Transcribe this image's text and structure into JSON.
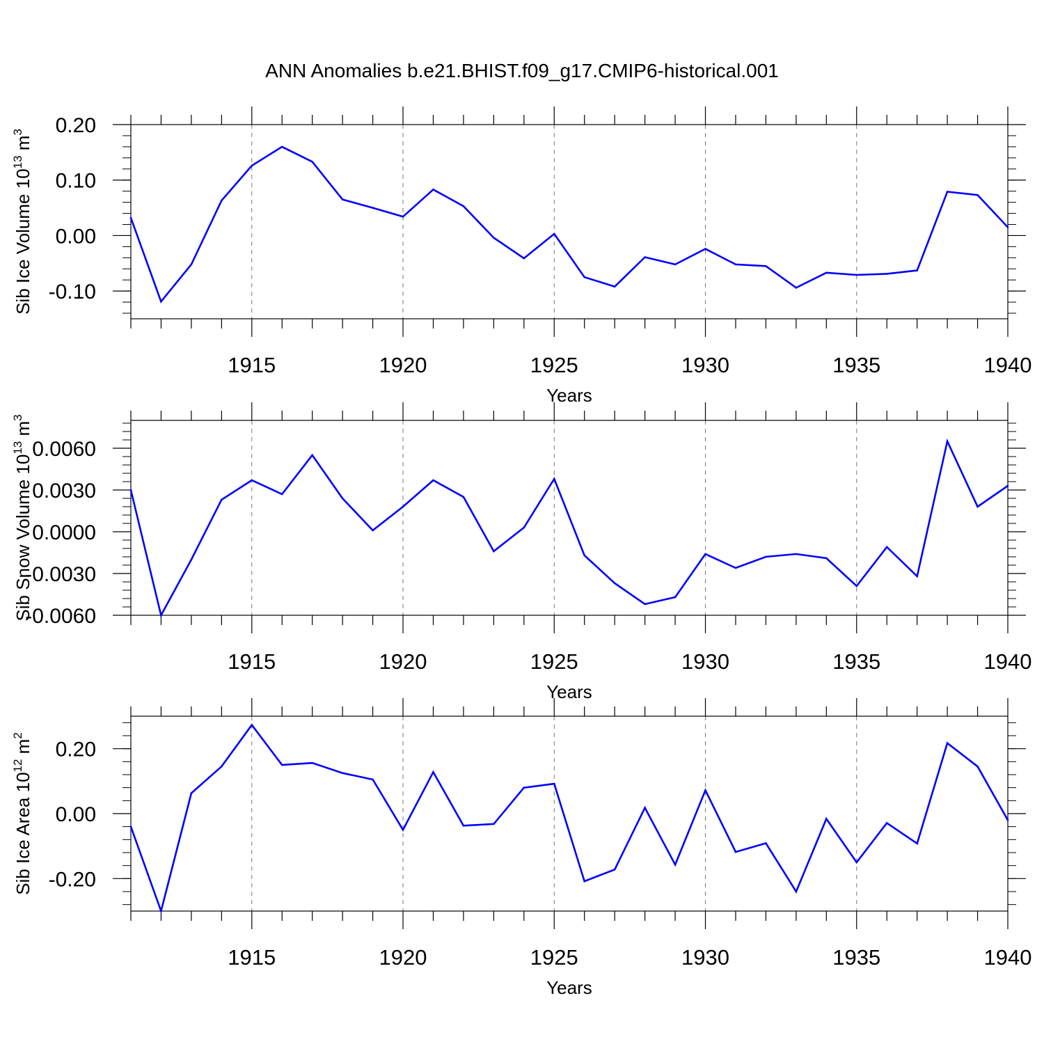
{
  "figure": {
    "title": "ANN Anomalies b.e21.BHIST.f09_g17.CMIP6-historical.001"
  },
  "colors": {
    "series": "#0000ff",
    "axes": "#000000",
    "gridline": "#777777"
  },
  "chart_data": [
    {
      "type": "line",
      "title": "",
      "xlabel": "Years",
      "ylabel": "Sib Ice Volume 10",
      "ylabel_sup": "13",
      "ylabel_unit": "m",
      "ylabel_unit_sup": "3",
      "xlim": [
        1911,
        1940
      ],
      "ylim": [
        -0.15,
        0.2
      ],
      "xticks": [
        1915,
        1920,
        1925,
        1930,
        1935,
        1940
      ],
      "xtick_labels": [
        "1915",
        "1920",
        "1925",
        "1930",
        "1935",
        "1940"
      ],
      "yticks": [
        0.2,
        0.1,
        0.0,
        -0.1
      ],
      "ytick_labels": [
        "0.20",
        "0.10",
        "0.00",
        "-0.10"
      ],
      "grid": "vertical-dashed-at-major-ticks",
      "legend": "none",
      "x": [
        1911,
        1912,
        1913,
        1914,
        1915,
        1916,
        1917,
        1918,
        1919,
        1920,
        1921,
        1922,
        1923,
        1924,
        1925,
        1926,
        1927,
        1928,
        1929,
        1930,
        1931,
        1932,
        1933,
        1934,
        1935,
        1936,
        1937,
        1938,
        1939,
        1940
      ],
      "values": [
        0.032,
        -0.119,
        -0.052,
        0.063,
        0.126,
        0.16,
        0.133,
        0.065,
        0.05,
        0.034,
        0.083,
        0.053,
        -0.004,
        -0.041,
        0.003,
        -0.075,
        -0.092,
        -0.039,
        -0.052,
        -0.024,
        -0.052,
        -0.055,
        -0.094,
        -0.067,
        -0.071,
        -0.069,
        -0.063,
        0.079,
        0.073,
        0.015
      ]
    },
    {
      "type": "line",
      "title": "",
      "xlabel": "Years",
      "ylabel": "Sib Snow Volume 10",
      "ylabel_sup": "13",
      "ylabel_unit": "m",
      "ylabel_unit_sup": "3",
      "xlim": [
        1911,
        1940
      ],
      "ylim": [
        -0.006,
        0.008
      ],
      "xticks": [
        1915,
        1920,
        1925,
        1930,
        1935,
        1940
      ],
      "xtick_labels": [
        "1915",
        "1920",
        "1925",
        "1930",
        "1935",
        "1940"
      ],
      "yticks": [
        0.006,
        0.003,
        0.0,
        -0.003,
        -0.006
      ],
      "ytick_labels": [
        "0.0060",
        "0.0030",
        "0.0000",
        "-0.0030",
        "-0.0060"
      ],
      "grid": "vertical-dashed-at-major-ticks",
      "legend": "none",
      "x": [
        1911,
        1912,
        1913,
        1914,
        1915,
        1916,
        1917,
        1918,
        1919,
        1920,
        1921,
        1922,
        1923,
        1924,
        1925,
        1926,
        1927,
        1928,
        1929,
        1930,
        1931,
        1932,
        1933,
        1934,
        1935,
        1936,
        1937,
        1938,
        1939,
        1940
      ],
      "values": [
        0.003,
        -0.006,
        -0.002,
        0.0023,
        0.0037,
        0.0027,
        0.0055,
        0.0024,
        0.0001,
        0.0018,
        0.0037,
        0.0025,
        -0.0014,
        0.0003,
        0.0038,
        -0.0017,
        -0.0037,
        -0.0052,
        -0.0047,
        -0.0016,
        -0.0026,
        -0.0018,
        -0.0016,
        -0.0019,
        -0.0039,
        -0.0011,
        -0.0032,
        0.0065,
        0.0018,
        0.0033
      ]
    },
    {
      "type": "line",
      "title": "",
      "xlabel": "Years",
      "ylabel": "Sib Ice Area 10",
      "ylabel_sup": "12",
      "ylabel_unit": "m",
      "ylabel_unit_sup": "2",
      "xlim": [
        1911,
        1940
      ],
      "ylim": [
        -0.3,
        0.3
      ],
      "xticks": [
        1915,
        1920,
        1925,
        1930,
        1935,
        1940
      ],
      "xtick_labels": [
        "1915",
        "1920",
        "1925",
        "1930",
        "1935",
        "1940"
      ],
      "yticks": [
        0.2,
        0.0,
        -0.2
      ],
      "ytick_labels": [
        "0.20",
        "0.00",
        "-0.20"
      ],
      "grid": "vertical-dashed-at-major-ticks",
      "legend": "none",
      "x": [
        1911,
        1912,
        1913,
        1914,
        1915,
        1916,
        1917,
        1918,
        1919,
        1920,
        1921,
        1922,
        1923,
        1924,
        1925,
        1926,
        1927,
        1928,
        1929,
        1930,
        1931,
        1932,
        1933,
        1934,
        1935,
        1936,
        1937,
        1938,
        1939,
        1940
      ],
      "values": [
        -0.04,
        -0.3,
        0.063,
        0.145,
        0.273,
        0.15,
        0.156,
        0.125,
        0.105,
        -0.05,
        0.128,
        -0.037,
        -0.032,
        0.08,
        0.092,
        -0.208,
        -0.172,
        0.018,
        -0.157,
        0.072,
        -0.118,
        -0.091,
        -0.24,
        -0.016,
        -0.15,
        -0.029,
        -0.092,
        0.217,
        0.145,
        -0.02
      ]
    }
  ]
}
